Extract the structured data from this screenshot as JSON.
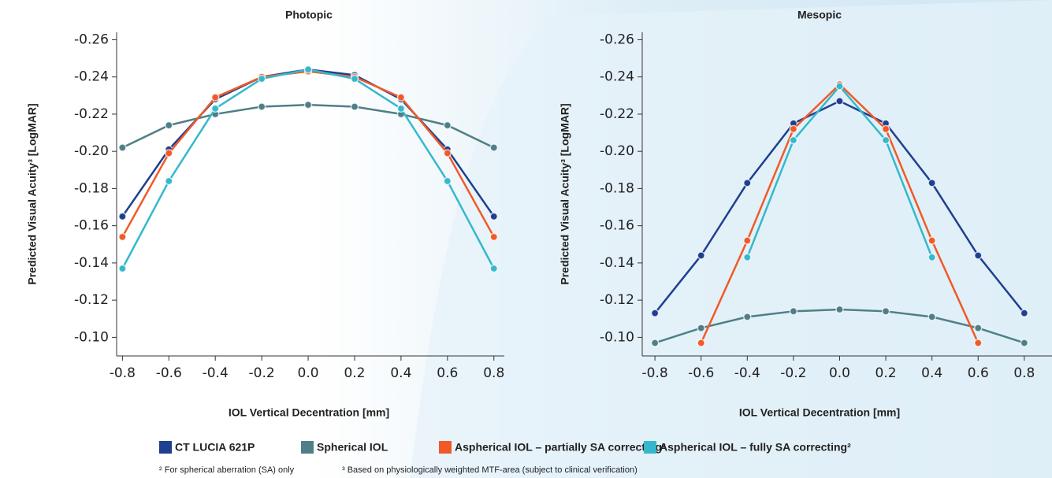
{
  "chart_data": [
    {
      "type": "line",
      "title": "Photopic",
      "x_label": "IOL Vertical Decentration [mm]",
      "y_label": "Predicted Visual Acuity³ [LogMAR]",
      "x": [
        -0.8,
        -0.6,
        -0.4,
        -0.2,
        0,
        0.2,
        0.4,
        0.6,
        0.8
      ],
      "xlim": [
        -0.825,
        0.845
      ],
      "xticks": [
        -0.8,
        -0.6,
        -0.4,
        -0.2,
        {
          "value": 0,
          "label": "0.0"
        },
        0.2,
        0.4,
        0.6,
        0.8
      ],
      "ylim": [
        -0.09,
        -0.264
      ],
      "yticks": [
        {
          "value": -0.1,
          "label": "-0.10"
        },
        -0.12,
        -0.14,
        -0.16,
        -0.18,
        {
          "value": -0.2,
          "label": "-0.20"
        },
        -0.22,
        -0.24,
        -0.26
      ],
      "series": [
        {
          "name": "CT LUCIA 621P",
          "color": "#1f3f8f",
          "values": [
            -0.165,
            -0.201,
            -0.228,
            -0.24,
            -0.244,
            -0.241,
            -0.228,
            -0.201,
            -0.165
          ]
        },
        {
          "name": "Spherical IOL",
          "color": "#4f7f86",
          "values": [
            -0.202,
            -0.214,
            -0.22,
            -0.224,
            -0.225,
            -0.224,
            -0.22,
            -0.214,
            -0.202
          ]
        },
        {
          "name": "Aspherical IOL – partially SA correcting²",
          "color": "#f05a28",
          "values": [
            -0.154,
            -0.199,
            -0.229,
            -0.24,
            -0.243,
            -0.24,
            -0.229,
            -0.199,
            -0.154
          ]
        },
        {
          "name": "Aspherical IOL – fully SA correcting²",
          "color": "#35b8cc",
          "values": [
            -0.137,
            -0.184,
            -0.223,
            -0.239,
            -0.244,
            -0.239,
            -0.223,
            -0.184,
            -0.137
          ]
        }
      ]
    },
    {
      "type": "line",
      "title": "Mesopic",
      "x_label": "IOL Vertical Decentration [mm]",
      "y_label": "Predicted Visual Acuity³ [LogMAR]",
      "x": [
        -0.8,
        -0.6,
        -0.4,
        -0.2,
        0,
        0.2,
        0.4,
        0.6,
        0.8
      ],
      "xlim": [
        -0.855,
        0.92
      ],
      "xticks": [
        -0.8,
        -0.6,
        -0.4,
        -0.2,
        {
          "value": 0,
          "label": "0.0"
        },
        0.2,
        0.4,
        0.6,
        0.8
      ],
      "ylim": [
        -0.09,
        -0.264
      ],
      "yticks": [
        {
          "value": -0.1,
          "label": "-0.10"
        },
        -0.12,
        -0.14,
        -0.16,
        -0.18,
        {
          "value": -0.2,
          "label": "-0.20"
        },
        -0.22,
        -0.24,
        -0.26
      ],
      "series": [
        {
          "color": "#1f3f8f",
          "values": [
            -0.113,
            -0.144,
            -0.183,
            -0.215,
            -0.227,
            -0.215,
            -0.183,
            -0.144,
            -0.113
          ]
        },
        {
          "color": "#4f7f86",
          "values": [
            -0.097,
            -0.105,
            -0.111,
            -0.114,
            -0.115,
            -0.114,
            -0.111,
            -0.105,
            -0.097
          ]
        },
        {
          "color": "#f05a28",
          "values": [
            null,
            -0.097,
            -0.152,
            -0.212,
            -0.236,
            -0.212,
            -0.152,
            -0.097,
            null
          ]
        },
        {
          "color": "#35b8cc",
          "values": [
            null,
            null,
            -0.143,
            -0.206,
            -0.235,
            -0.206,
            -0.143,
            null,
            null
          ]
        }
      ]
    }
  ],
  "footnotes": [
    "² For spherical aberration (SA) only",
    "³ Based on physiologically weighted MTF-area (subject to clinical verification)"
  ]
}
